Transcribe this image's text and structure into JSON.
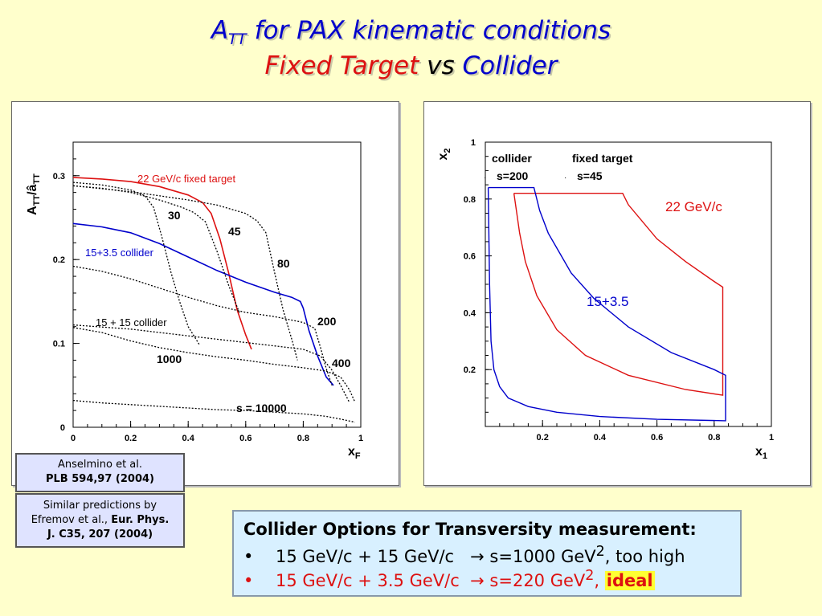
{
  "title": {
    "line1_main": "A",
    "line1_sub": "TT",
    "line1_rest": " for PAX kinematic conditions",
    "line2_a": "Fixed Target",
    "line2_b": " vs ",
    "line2_c": "Collider"
  },
  "chart_data": [
    {
      "type": "line",
      "ylabel": "A_TT/â_TT",
      "xlabel": "x_F",
      "xlim": [
        0,
        1
      ],
      "ylim": [
        0,
        0.34
      ],
      "xticks": [
        "0",
        "0.2",
        "0.4",
        "0.6",
        "0.8",
        "1"
      ],
      "yticks": [
        "0",
        "0.1",
        "0.2",
        "0.3"
      ],
      "annotations": [
        "22 GeV/c fixed target",
        "15+3.5 collider",
        "15 + 15 collider",
        "30",
        "45",
        "80",
        "200",
        "400",
        "1000",
        "s = 10000"
      ],
      "series": [
        {
          "name": "22 GeV/c fixed target",
          "color": "#dd1111",
          "style": "solid",
          "x": [
            0,
            0.1,
            0.2,
            0.3,
            0.4,
            0.45,
            0.48,
            0.51,
            0.54,
            0.57,
            0.6,
            0.62
          ],
          "y": [
            0.298,
            0.296,
            0.293,
            0.287,
            0.277,
            0.268,
            0.255,
            0.225,
            0.185,
            0.14,
            0.11,
            0.093
          ]
        },
        {
          "name": "15+3.5 collider",
          "color": "#0000cc",
          "style": "solid",
          "x": [
            0,
            0.1,
            0.2,
            0.3,
            0.4,
            0.5,
            0.6,
            0.7,
            0.76,
            0.79,
            0.8,
            0.82,
            0.85,
            0.88,
            0.905
          ],
          "y": [
            0.243,
            0.239,
            0.232,
            0.219,
            0.203,
            0.187,
            0.173,
            0.161,
            0.155,
            0.15,
            0.142,
            0.115,
            0.085,
            0.06,
            0.05
          ]
        },
        {
          "name": "30",
          "color": "#000000",
          "style": "dotted",
          "x": [
            0,
            0.1,
            0.2,
            0.25,
            0.28,
            0.31,
            0.34,
            0.37,
            0.4,
            0.44
          ],
          "y": [
            0.292,
            0.289,
            0.283,
            0.276,
            0.262,
            0.225,
            0.185,
            0.15,
            0.12,
            0.098
          ]
        },
        {
          "name": "45",
          "color": "#000000",
          "style": "dotted",
          "x": [
            0,
            0.1,
            0.2,
            0.3,
            0.38,
            0.42,
            0.46,
            0.5,
            0.54,
            0.58
          ],
          "y": [
            0.288,
            0.285,
            0.28,
            0.271,
            0.262,
            0.256,
            0.245,
            0.21,
            0.17,
            0.135
          ]
        },
        {
          "name": "80",
          "color": "#000000",
          "style": "dotted",
          "x": [
            0,
            0.2,
            0.4,
            0.5,
            0.6,
            0.64,
            0.67,
            0.7,
            0.73,
            0.76,
            0.78
          ],
          "y": [
            0.288,
            0.281,
            0.271,
            0.265,
            0.255,
            0.246,
            0.232,
            0.185,
            0.14,
            0.105,
            0.08
          ]
        },
        {
          "name": "200",
          "color": "#000000",
          "style": "dotted",
          "x": [
            0,
            0.1,
            0.2,
            0.3,
            0.4,
            0.5,
            0.6,
            0.7,
            0.8,
            0.84,
            0.86,
            0.88,
            0.9
          ],
          "y": [
            0.192,
            0.186,
            0.177,
            0.166,
            0.155,
            0.145,
            0.137,
            0.132,
            0.125,
            0.118,
            0.095,
            0.07,
            0.05
          ]
        },
        {
          "name": "400",
          "color": "#000000",
          "style": "dotted",
          "x": [
            0,
            0.2,
            0.4,
            0.6,
            0.8,
            0.86,
            0.9,
            0.93,
            0.96
          ],
          "y": [
            0.122,
            0.117,
            0.109,
            0.101,
            0.093,
            0.085,
            0.068,
            0.05,
            0.03
          ]
        },
        {
          "name": "1000",
          "color": "#000000",
          "style": "dotted",
          "x": [
            0,
            0.1,
            0.2,
            0.3,
            0.4,
            0.5,
            0.6,
            0.7,
            0.8,
            0.88,
            0.93,
            0.96,
            0.98
          ],
          "y": [
            0.119,
            0.113,
            0.103,
            0.095,
            0.089,
            0.084,
            0.08,
            0.075,
            0.071,
            0.067,
            0.06,
            0.045,
            0.03
          ]
        },
        {
          "name": "s = 10000",
          "color": "#000000",
          "style": "dotted",
          "x": [
            0,
            0.1,
            0.2,
            0.3,
            0.4,
            0.5,
            0.6,
            0.7,
            0.8,
            0.88,
            0.94,
            0.98
          ],
          "y": [
            0.032,
            0.029,
            0.027,
            0.025,
            0.023,
            0.021,
            0.02,
            0.018,
            0.016,
            0.013,
            0.009,
            0.006
          ]
        }
      ]
    },
    {
      "type": "line",
      "xlabel": "x_1",
      "ylabel": "x_2",
      "xlim": [
        0,
        1
      ],
      "ylim": [
        0,
        1
      ],
      "xticks": [
        "0.2",
        "0.4",
        "0.6",
        "0.8",
        "1"
      ],
      "yticks": [
        "0.2",
        "0.4",
        "0.6",
        "0.8",
        "1"
      ],
      "legend": [
        {
          "name": "collider",
          "sub": "s=200"
        },
        {
          "name": "fixed target",
          "sub": "s=45"
        }
      ],
      "annotations": [
        "22 GeV/c",
        "15+3.5"
      ],
      "series": [
        {
          "name": "22 GeV/c",
          "color": "#dd1111",
          "x": [
            0.1,
            0.48,
            0.5,
            0.6,
            0.7,
            0.8,
            0.83,
            0.83,
            0.7,
            0.5,
            0.35,
            0.25,
            0.18,
            0.14,
            0.12,
            0.1
          ],
          "y": [
            0.82,
            0.82,
            0.78,
            0.66,
            0.58,
            0.51,
            0.49,
            0.11,
            0.13,
            0.18,
            0.25,
            0.34,
            0.46,
            0.58,
            0.68,
            0.82
          ]
        },
        {
          "name": "15+3.5",
          "color": "#0000cc",
          "x": [
            0.01,
            0.17,
            0.19,
            0.22,
            0.26,
            0.3,
            0.38,
            0.5,
            0.65,
            0.8,
            0.84,
            0.84,
            0.6,
            0.4,
            0.25,
            0.15,
            0.08,
            0.05,
            0.03,
            0.02,
            0.015,
            0.01
          ],
          "y": [
            0.84,
            0.84,
            0.76,
            0.68,
            0.61,
            0.54,
            0.45,
            0.35,
            0.26,
            0.2,
            0.18,
            0.02,
            0.025,
            0.035,
            0.05,
            0.07,
            0.1,
            0.14,
            0.2,
            0.3,
            0.5,
            0.84
          ]
        }
      ]
    }
  ],
  "refs": {
    "anselmino_l1": "Anselmino et al.",
    "anselmino_l2": "PLB 594,97 (2004)",
    "efremov_l1": "Similar predictions by",
    "efremov_l2a": "Efremov et al., ",
    "efremov_l2b": "Eur. Phys.",
    "efremov_l3": "J. C35, 207 (2004)"
  },
  "note": {
    "heading": "Collider Options for Transversity measurement:",
    "bullet": "•",
    "l1_a": "15 GeV/c + 15 GeV/c",
    "l1_arrow": "→",
    "l1_b": " s=1000 GeV",
    "l1_sup": "2",
    "l1_c": ", too high",
    "l2_a": "15 GeV/c + 3.5 GeV/c",
    "l2_arrow": "→",
    "l2_b": " s=220 GeV",
    "l2_sup": "2",
    "l2_c": ", ",
    "l2_ideal": "ideal"
  },
  "colors": {
    "background": "#ffffcc",
    "red": "#dd1111",
    "blue": "#0000cc",
    "ref_box": "#dfe3ff",
    "note_box": "#d8f0ff"
  }
}
